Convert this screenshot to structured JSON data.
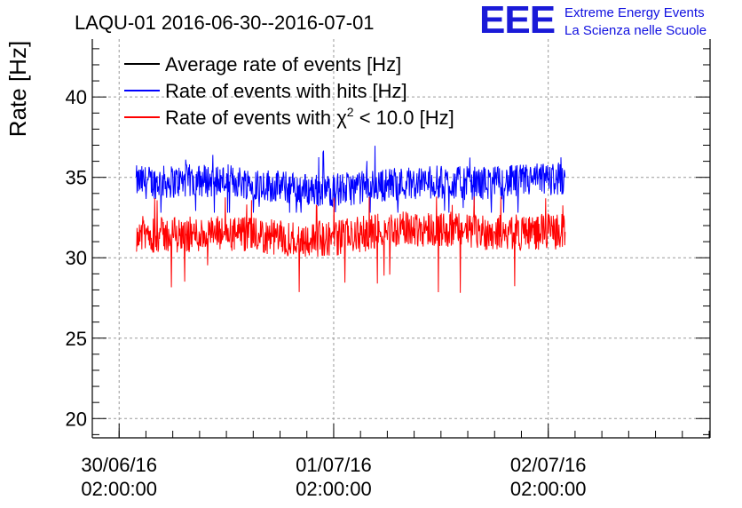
{
  "chart_data": {
    "type": "line",
    "title": "LAQU-01 2016-06-30--2016-07-01",
    "ylabel": "Rate [Hz]",
    "xlabel": "",
    "ylim": [
      18.8,
      43.6
    ],
    "xlim_hours_from_30_06_00_00": [
      -1.0,
      68.1
    ],
    "y_ticks": [
      20,
      25,
      30,
      35,
      40
    ],
    "x_ticks": [
      {
        "hour": 2,
        "date": "30/06/16",
        "time": "02:00:00"
      },
      {
        "hour": 26,
        "date": "01/07/16",
        "time": "02:00:00"
      },
      {
        "hour": 50,
        "date": "02/07/16",
        "time": "02:00:00"
      }
    ],
    "grid": true,
    "legend_position": "top-left",
    "series": [
      {
        "name": "Average rate of events [Hz]",
        "color": "#000000",
        "base": null,
        "spread": 0
      },
      {
        "name": "Rate of events with hits [Hz]",
        "color": "#0000ff",
        "hour_start": 3.9,
        "hour_end": 51.9,
        "base": 34.6,
        "spread": 0.7,
        "max": 37.2,
        "min": 32.8
      },
      {
        "name": "Rate of events with χ² < 10.0 [Hz]",
        "color": "#ff0000",
        "hour_start": 3.9,
        "hour_end": 51.9,
        "base": 31.5,
        "spread": 0.75,
        "max": 33.8,
        "min": 27.0
      }
    ],
    "legend_parts": {
      "chi_prefix": "Rate of events with ",
      "chi_symbol": "χ",
      "chi_exp": "2",
      "chi_suffix": " < 10.0 [Hz]"
    }
  },
  "logo": {
    "mark": "EEE",
    "line1": "Extreme Energy Events",
    "line2": "La Scienza nelle Scuole",
    "color": "#1a1ad8"
  }
}
